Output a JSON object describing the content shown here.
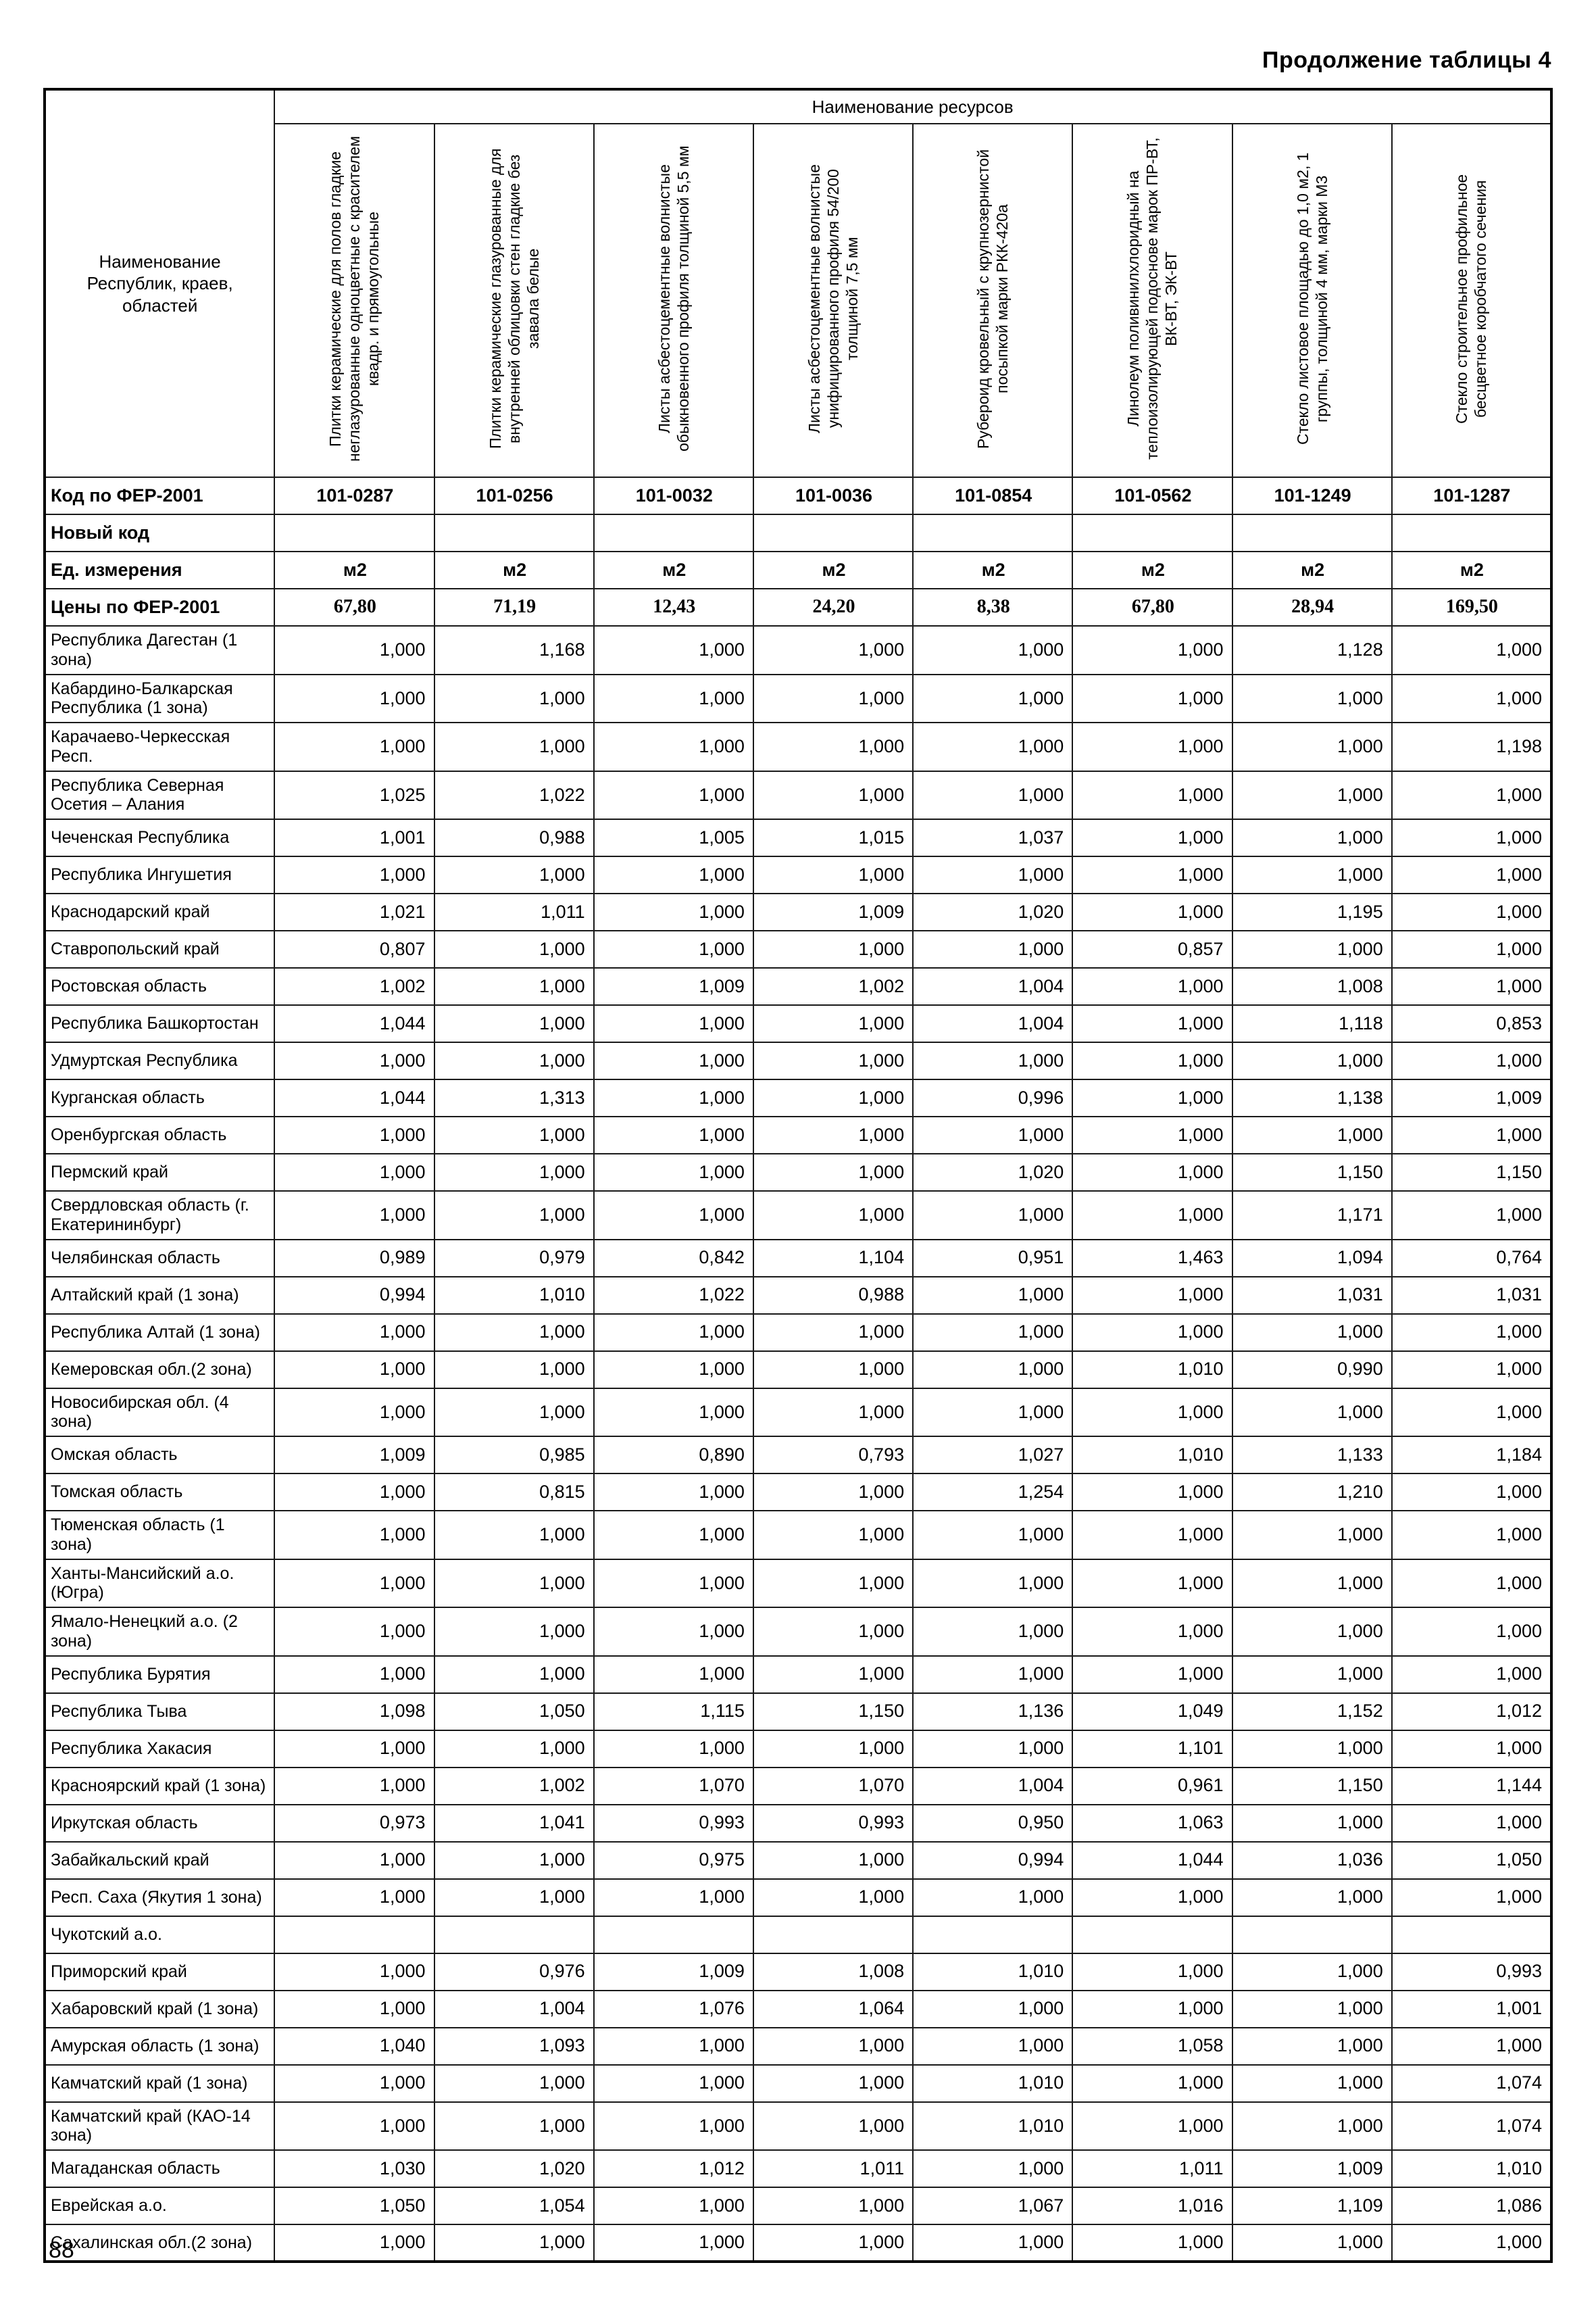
{
  "page": {
    "title": "Продолжение таблицы 4",
    "page_number": "88"
  },
  "table": {
    "corner_header": "Наименование Республик, краев, областей",
    "resources_header": "Наименование ресурсов",
    "columns": [
      "Плитки керамические для полов гладкие неглазурованные одноцветные с красителем квадр. и прямоугольные",
      "Плитки керамические глазурованные для внутренней облицовки стен гладкие без завала белые",
      "Листы асбестоцементные волнистые обыкновенного профиля толщиной 5,5 мм",
      "Листы асбестоцементные волнистые унифицированного профиля 54/200 толщиной 7,5 мм",
      "Рубероид кровельный с крупнозернистой посыпкой марки РКК-420а",
      "Линолеум поливинилхлоридный на теплоизолирующей подоснове марок ПР-ВТ, ВК-ВТ, ЭК-ВТ",
      "Стекло листовое площадью до 1,0 м2, 1 группы, толщиной 4 мм, марки М3",
      "Стекло строительное профильное бесцветное коробчатого сечения"
    ],
    "meta_rows": [
      {
        "label": "Код по ФЕР-2001",
        "values": [
          "101-0287",
          "101-0256",
          "101-0032",
          "101-0036",
          "101-0854",
          "101-0562",
          "101-1249",
          "101-1287"
        ]
      },
      {
        "label": "Новый код",
        "values": [
          "",
          "",
          "",
          "",
          "",
          "",
          "",
          ""
        ]
      },
      {
        "label": "Ед. измерения",
        "values": [
          "м2",
          "м2",
          "м2",
          "м2",
          "м2",
          "м2",
          "м2",
          "м2"
        ]
      },
      {
        "label": "Цены по ФЕР-2001",
        "values": [
          "67,80",
          "71,19",
          "12,43",
          "24,20",
          "8,38",
          "67,80",
          "28,94",
          "169,50"
        ]
      }
    ],
    "rows": [
      {
        "label": "Республика Дагестан (1 зона)",
        "values": [
          "1,000",
          "1,168",
          "1,000",
          "1,000",
          "1,000",
          "1,000",
          "1,128",
          "1,000"
        ]
      },
      {
        "label": "Кабардино-Балкарская Республика (1 зона)",
        "values": [
          "1,000",
          "1,000",
          "1,000",
          "1,000",
          "1,000",
          "1,000",
          "1,000",
          "1,000"
        ]
      },
      {
        "label": "Карачаево-Черкесская Респ.",
        "values": [
          "1,000",
          "1,000",
          "1,000",
          "1,000",
          "1,000",
          "1,000",
          "1,000",
          "1,198"
        ]
      },
      {
        "label": "Республика Северная Осетия – Алания",
        "values": [
          "1,025",
          "1,022",
          "1,000",
          "1,000",
          "1,000",
          "1,000",
          "1,000",
          "1,000"
        ]
      },
      {
        "label": "Чеченская Республика",
        "values": [
          "1,001",
          "0,988",
          "1,005",
          "1,015",
          "1,037",
          "1,000",
          "1,000",
          "1,000"
        ]
      },
      {
        "label": "Республика Ингушетия",
        "values": [
          "1,000",
          "1,000",
          "1,000",
          "1,000",
          "1,000",
          "1,000",
          "1,000",
          "1,000"
        ]
      },
      {
        "label": "Краснодарский край",
        "values": [
          "1,021",
          "1,011",
          "1,000",
          "1,009",
          "1,020",
          "1,000",
          "1,195",
          "1,000"
        ]
      },
      {
        "label": "Ставропольский край",
        "values": [
          "0,807",
          "1,000",
          "1,000",
          "1,000",
          "1,000",
          "0,857",
          "1,000",
          "1,000"
        ]
      },
      {
        "label": "Ростовская область",
        "values": [
          "1,002",
          "1,000",
          "1,009",
          "1,002",
          "1,004",
          "1,000",
          "1,008",
          "1,000"
        ]
      },
      {
        "label": "Республика Башкортостан",
        "values": [
          "1,044",
          "1,000",
          "1,000",
          "1,000",
          "1,004",
          "1,000",
          "1,118",
          "0,853"
        ]
      },
      {
        "label": "Удмуртская Республика",
        "values": [
          "1,000",
          "1,000",
          "1,000",
          "1,000",
          "1,000",
          "1,000",
          "1,000",
          "1,000"
        ]
      },
      {
        "label": "Курганская область",
        "values": [
          "1,044",
          "1,313",
          "1,000",
          "1,000",
          "0,996",
          "1,000",
          "1,138",
          "1,009"
        ]
      },
      {
        "label": "Оренбургская область",
        "values": [
          "1,000",
          "1,000",
          "1,000",
          "1,000",
          "1,000",
          "1,000",
          "1,000",
          "1,000"
        ]
      },
      {
        "label": "Пермский край",
        "values": [
          "1,000",
          "1,000",
          "1,000",
          "1,000",
          "1,020",
          "1,000",
          "1,150",
          "1,150"
        ]
      },
      {
        "label": "Свердловская область (г. Екатерининбург)",
        "values": [
          "1,000",
          "1,000",
          "1,000",
          "1,000",
          "1,000",
          "1,000",
          "1,171",
          "1,000"
        ]
      },
      {
        "label": "Челябинская область",
        "values": [
          "0,989",
          "0,979",
          "0,842",
          "1,104",
          "0,951",
          "1,463",
          "1,094",
          "0,764"
        ]
      },
      {
        "label": "Алтайский край (1 зона)",
        "values": [
          "0,994",
          "1,010",
          "1,022",
          "0,988",
          "1,000",
          "1,000",
          "1,031",
          "1,031"
        ]
      },
      {
        "label": "Республика Алтай (1 зона)",
        "values": [
          "1,000",
          "1,000",
          "1,000",
          "1,000",
          "1,000",
          "1,000",
          "1,000",
          "1,000"
        ]
      },
      {
        "label": "Кемеровская обл.(2 зона)",
        "values": [
          "1,000",
          "1,000",
          "1,000",
          "1,000",
          "1,000",
          "1,010",
          "0,990",
          "1,000"
        ]
      },
      {
        "label": "Новосибирская обл. (4 зона)",
        "values": [
          "1,000",
          "1,000",
          "1,000",
          "1,000",
          "1,000",
          "1,000",
          "1,000",
          "1,000"
        ]
      },
      {
        "label": "Омская область",
        "values": [
          "1,009",
          "0,985",
          "0,890",
          "0,793",
          "1,027",
          "1,010",
          "1,133",
          "1,184"
        ]
      },
      {
        "label": "Томская область",
        "values": [
          "1,000",
          "0,815",
          "1,000",
          "1,000",
          "1,254",
          "1,000",
          "1,210",
          "1,000"
        ]
      },
      {
        "label": "Тюменская область (1 зона)",
        "values": [
          "1,000",
          "1,000",
          "1,000",
          "1,000",
          "1,000",
          "1,000",
          "1,000",
          "1,000"
        ]
      },
      {
        "label": "Ханты-Мансийский а.о.(Югра)",
        "values": [
          "1,000",
          "1,000",
          "1,000",
          "1,000",
          "1,000",
          "1,000",
          "1,000",
          "1,000"
        ]
      },
      {
        "label": "Ямало-Ненецкий а.о. (2 зона)",
        "values": [
          "1,000",
          "1,000",
          "1,000",
          "1,000",
          "1,000",
          "1,000",
          "1,000",
          "1,000"
        ]
      },
      {
        "label": "Республика Бурятия",
        "values": [
          "1,000",
          "1,000",
          "1,000",
          "1,000",
          "1,000",
          "1,000",
          "1,000",
          "1,000"
        ]
      },
      {
        "label": "Республика Тыва",
        "values": [
          "1,098",
          "1,050",
          "1,115",
          "1,150",
          "1,136",
          "1,049",
          "1,152",
          "1,012"
        ]
      },
      {
        "label": "Республика Хакасия",
        "values": [
          "1,000",
          "1,000",
          "1,000",
          "1,000",
          "1,000",
          "1,101",
          "1,000",
          "1,000"
        ]
      },
      {
        "label": "Красноярский край (1 зона)",
        "values": [
          "1,000",
          "1,002",
          "1,070",
          "1,070",
          "1,004",
          "0,961",
          "1,150",
          "1,144"
        ]
      },
      {
        "label": "Иркутская область",
        "values": [
          "0,973",
          "1,041",
          "0,993",
          "0,993",
          "0,950",
          "1,063",
          "1,000",
          "1,000"
        ]
      },
      {
        "label": "Забайкальский край",
        "values": [
          "1,000",
          "1,000",
          "0,975",
          "1,000",
          "0,994",
          "1,044",
          "1,036",
          "1,050"
        ]
      },
      {
        "label": "Респ. Саха (Якутия 1 зона)",
        "values": [
          "1,000",
          "1,000",
          "1,000",
          "1,000",
          "1,000",
          "1,000",
          "1,000",
          "1,000"
        ]
      },
      {
        "label": "Чукотский а.о.",
        "values": [
          "",
          "",
          "",
          "",
          "",
          "",
          "",
          ""
        ]
      },
      {
        "label": "Приморский край",
        "values": [
          "1,000",
          "0,976",
          "1,009",
          "1,008",
          "1,010",
          "1,000",
          "1,000",
          "0,993"
        ]
      },
      {
        "label": "Хабаровский край (1 зона)",
        "values": [
          "1,000",
          "1,004",
          "1,076",
          "1,064",
          "1,000",
          "1,000",
          "1,000",
          "1,001"
        ]
      },
      {
        "label": "Амурская область (1 зона)",
        "values": [
          "1,040",
          "1,093",
          "1,000",
          "1,000",
          "1,000",
          "1,058",
          "1,000",
          "1,000"
        ]
      },
      {
        "label": "Камчатский край (1 зона)",
        "values": [
          "1,000",
          "1,000",
          "1,000",
          "1,000",
          "1,010",
          "1,000",
          "1,000",
          "1,074"
        ]
      },
      {
        "label": "Камчатский край (КАО-14 зона)",
        "values": [
          "1,000",
          "1,000",
          "1,000",
          "1,000",
          "1,010",
          "1,000",
          "1,000",
          "1,074"
        ]
      },
      {
        "label": "Магаданская область",
        "values": [
          "1,030",
          "1,020",
          "1,012",
          "1,011",
          "1,000",
          "1,011",
          "1,009",
          "1,010"
        ]
      },
      {
        "label": "Еврейская а.о.",
        "values": [
          "1,050",
          "1,054",
          "1,000",
          "1,000",
          "1,067",
          "1,016",
          "1,109",
          "1,086"
        ]
      },
      {
        "label": "Сахалинская обл.(2 зона)",
        "values": [
          "1,000",
          "1,000",
          "1,000",
          "1,000",
          "1,000",
          "1,000",
          "1,000",
          "1,000"
        ]
      }
    ]
  }
}
